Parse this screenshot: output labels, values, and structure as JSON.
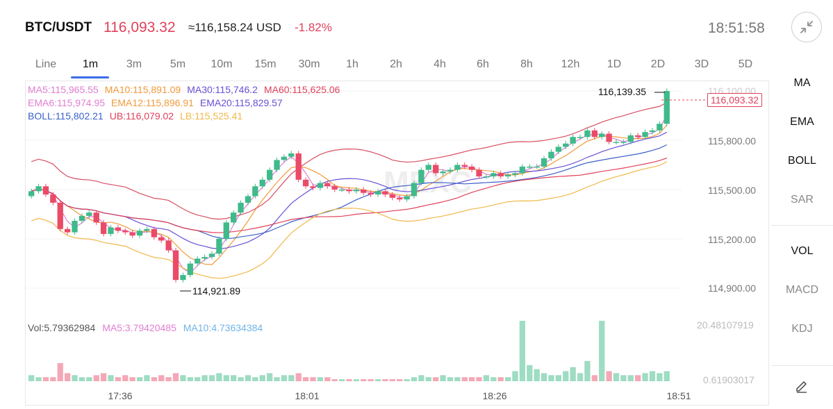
{
  "header": {
    "pair": "BTC/USDT",
    "price": "116,093.32",
    "usd_value": "≈116,158.24 USD",
    "change": "-1.82%",
    "time": "18:51:58"
  },
  "timeframes": [
    "Line",
    "1m",
    "3m",
    "5m",
    "10m",
    "15m",
    "30m",
    "1h",
    "2h",
    "4h",
    "6h",
    "8h",
    "12h",
    "1D",
    "2D",
    "3D",
    "5D"
  ],
  "active_timeframe": "1m",
  "indicators": {
    "row1": [
      {
        "text": "MA5:115,965.55",
        "color": "#e07ed2"
      },
      {
        "text": "MA10:115,891.09",
        "color": "#f09a3a"
      },
      {
        "text": "MA30:115,746.2",
        "color": "#6a4fd6"
      },
      {
        "text": "MA60:115,625.06",
        "color": "#e0405a"
      }
    ],
    "row2": [
      {
        "text": "EMA6:115,974.95",
        "color": "#e07ed2"
      },
      {
        "text": "EMA12:115,896.91",
        "color": "#f09a3a"
      },
      {
        "text": "EMA20:115,829.57",
        "color": "#6a4fd6"
      }
    ],
    "row3": [
      {
        "text": "BOLL:115,802.21",
        "color": "#3a5fc8"
      },
      {
        "text": "UB:116,079.02",
        "color": "#e0405a"
      },
      {
        "text": "LB:115,525.41",
        "color": "#f0b84a"
      }
    ]
  },
  "price_axis": [
    "116,100.00",
    "115,800.00",
    "115,500.00",
    "115,200.00",
    "114,900.00"
  ],
  "high_label": "116,139.35",
  "low_label": "114,921.89",
  "current_price_tag": "116,093.32",
  "watermark": "MEXC",
  "volume": {
    "vol": "Vol:5.79362984",
    "ma5": "MA5:3.79420485",
    "ma10": "MA10:4.73634384",
    "max": "20.48107919",
    "min": "0.61903017"
  },
  "time_axis": [
    "17:36",
    "18:01",
    "18:26",
    "18:51"
  ],
  "side_panel": {
    "main": [
      "MA",
      "EMA",
      "BOLL",
      "SAR"
    ],
    "sub": [
      "VOL",
      "MACD",
      "KDJ"
    ],
    "active_main": [
      "MA",
      "EMA",
      "BOLL"
    ],
    "active_sub": [
      "VOL"
    ],
    "edit_icon": "pencil-icon"
  },
  "colors": {
    "up": "#3fba8a",
    "down": "#ea4b67",
    "accent": "#3b6be8"
  }
}
